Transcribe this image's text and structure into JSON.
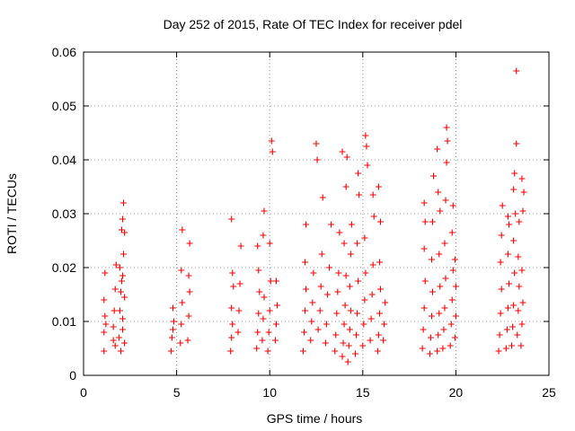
{
  "chart_data": {
    "type": "scatter",
    "title": "Day 252 of 2015, Rate Of TEC Index for receiver pdel",
    "xlabel": "GPS time / hours",
    "ylabel": "ROTI / TECUs",
    "xlim": [
      0,
      25
    ],
    "ylim": [
      0,
      0.06
    ],
    "x_ticks": [
      "0",
      "5",
      "10",
      "15",
      "20",
      "25"
    ],
    "y_ticks": [
      "0",
      "0.01",
      "0.02",
      "0.03",
      "0.04",
      "0.05",
      "0.06"
    ],
    "grid": true,
    "legend": "none",
    "marker": "plus",
    "color": "#ff0000",
    "series": [
      {
        "values": [
          [
            1.1,
            0.0045
          ],
          [
            1.1,
            0.008
          ],
          [
            1.15,
            0.011
          ],
          [
            1.1,
            0.014
          ],
          [
            1.15,
            0.019
          ],
          [
            1.2,
            0.0095
          ],
          [
            1.6,
            0.009
          ],
          [
            1.65,
            0.012
          ],
          [
            1.7,
            0.016
          ],
          [
            1.6,
            0.0065
          ],
          [
            1.75,
            0.0205
          ],
          [
            1.7,
            0.0055
          ],
          [
            1.9,
            0.007
          ],
          [
            1.95,
            0.012
          ],
          [
            2.0,
            0.0155
          ],
          [
            1.95,
            0.02
          ],
          [
            2.05,
            0.027
          ],
          [
            2.1,
            0.029
          ],
          [
            2.0,
            0.0045
          ],
          [
            2.1,
            0.0085
          ],
          [
            2.1,
            0.0185
          ],
          [
            2.15,
            0.0225
          ],
          [
            2.15,
            0.032
          ],
          [
            2.2,
            0.0265
          ],
          [
            2.1,
            0.0105
          ],
          [
            2.2,
            0.0145
          ],
          [
            2.2,
            0.006
          ],
          [
            2.05,
            0.0175
          ],
          [
            4.7,
            0.0045
          ],
          [
            4.75,
            0.007
          ],
          [
            4.8,
            0.0085
          ],
          [
            4.85,
            0.01
          ],
          [
            4.8,
            0.0125
          ],
          [
            5.2,
            0.006
          ],
          [
            5.25,
            0.0095
          ],
          [
            5.3,
            0.0135
          ],
          [
            5.25,
            0.0195
          ],
          [
            5.3,
            0.027
          ],
          [
            5.6,
            0.0065
          ],
          [
            5.65,
            0.011
          ],
          [
            5.7,
            0.0155
          ],
          [
            5.65,
            0.0185
          ],
          [
            5.7,
            0.0245
          ],
          [
            7.9,
            0.0045
          ],
          [
            7.95,
            0.007
          ],
          [
            8.0,
            0.0095
          ],
          [
            7.95,
            0.0125
          ],
          [
            8.05,
            0.0165
          ],
          [
            8.0,
            0.019
          ],
          [
            7.95,
            0.029
          ],
          [
            8.3,
            0.008
          ],
          [
            8.35,
            0.012
          ],
          [
            8.4,
            0.017
          ],
          [
            8.45,
            0.024
          ],
          [
            9.3,
            0.005
          ],
          [
            9.35,
            0.008
          ],
          [
            9.4,
            0.0115
          ],
          [
            9.45,
            0.0155
          ],
          [
            9.4,
            0.0195
          ],
          [
            9.35,
            0.024
          ],
          [
            9.6,
            0.0065
          ],
          [
            9.65,
            0.0105
          ],
          [
            9.7,
            0.0145
          ],
          [
            9.65,
            0.026
          ],
          [
            9.7,
            0.0305
          ],
          [
            9.9,
            0.0045
          ],
          [
            9.95,
            0.008
          ],
          [
            10.0,
            0.012
          ],
          [
            10.05,
            0.0175
          ],
          [
            10.0,
            0.0245
          ],
          [
            10.1,
            0.0435
          ],
          [
            10.15,
            0.0415
          ],
          [
            10.3,
            0.0065
          ],
          [
            10.35,
            0.0095
          ],
          [
            10.4,
            0.013
          ],
          [
            10.35,
            0.0175
          ],
          [
            11.8,
            0.0045
          ],
          [
            11.85,
            0.008
          ],
          [
            11.9,
            0.012
          ],
          [
            11.95,
            0.016
          ],
          [
            11.9,
            0.021
          ],
          [
            11.95,
            0.028
          ],
          [
            12.2,
            0.0065
          ],
          [
            12.25,
            0.01
          ],
          [
            12.3,
            0.0135
          ],
          [
            12.35,
            0.019
          ],
          [
            12.5,
            0.043
          ],
          [
            12.55,
            0.04
          ],
          [
            12.6,
            0.0085
          ],
          [
            12.7,
            0.012
          ],
          [
            12.75,
            0.0165
          ],
          [
            12.8,
            0.0225
          ],
          [
            12.85,
            0.033
          ],
          [
            13.0,
            0.006
          ],
          [
            13.05,
            0.0095
          ],
          [
            13.1,
            0.015
          ],
          [
            13.2,
            0.02
          ],
          [
            13.3,
            0.028
          ],
          [
            13.5,
            0.0045
          ],
          [
            13.55,
            0.0075
          ],
          [
            13.6,
            0.0115
          ],
          [
            13.65,
            0.0155
          ],
          [
            13.7,
            0.019
          ],
          [
            13.75,
            0.0265
          ],
          [
            13.9,
            0.0035
          ],
          [
            13.95,
            0.006
          ],
          [
            14.0,
            0.0095
          ],
          [
            14.05,
            0.013
          ],
          [
            14.1,
            0.0185
          ],
          [
            14.0,
            0.0245
          ],
          [
            14.1,
            0.035
          ],
          [
            14.15,
            0.0405
          ],
          [
            13.9,
            0.0415
          ],
          [
            14.2,
            0.0025
          ],
          [
            14.25,
            0.0055
          ],
          [
            14.3,
            0.0085
          ],
          [
            14.35,
            0.012
          ],
          [
            14.3,
            0.0165
          ],
          [
            14.35,
            0.0225
          ],
          [
            14.4,
            0.028
          ],
          [
            14.6,
            0.004
          ],
          [
            14.65,
            0.0075
          ],
          [
            14.7,
            0.0115
          ],
          [
            14.75,
            0.0175
          ],
          [
            14.7,
            0.0245
          ],
          [
            14.75,
            0.0375
          ],
          [
            14.8,
            0.0335
          ],
          [
            15.0,
            0.0055
          ],
          [
            15.05,
            0.0095
          ],
          [
            15.1,
            0.014
          ],
          [
            15.15,
            0.019
          ],
          [
            15.1,
            0.0255
          ],
          [
            15.15,
            0.0445
          ],
          [
            15.2,
            0.0425
          ],
          [
            15.25,
            0.039
          ],
          [
            15.4,
            0.0065
          ],
          [
            15.45,
            0.0105
          ],
          [
            15.5,
            0.015
          ],
          [
            15.55,
            0.0205
          ],
          [
            15.6,
            0.0295
          ],
          [
            15.55,
            0.0335
          ],
          [
            15.8,
            0.0045
          ],
          [
            15.85,
            0.0075
          ],
          [
            15.9,
            0.0115
          ],
          [
            15.95,
            0.016
          ],
          [
            15.9,
            0.021
          ],
          [
            15.95,
            0.0285
          ],
          [
            15.85,
            0.035
          ],
          [
            16.1,
            0.0065
          ],
          [
            16.15,
            0.0095
          ],
          [
            16.2,
            0.0135
          ],
          [
            18.2,
            0.005
          ],
          [
            18.25,
            0.0085
          ],
          [
            18.3,
            0.0125
          ],
          [
            18.35,
            0.0175
          ],
          [
            18.3,
            0.0235
          ],
          [
            18.35,
            0.0285
          ],
          [
            18.3,
            0.032
          ],
          [
            18.6,
            0.004
          ],
          [
            18.65,
            0.007
          ],
          [
            18.7,
            0.011
          ],
          [
            18.75,
            0.0155
          ],
          [
            18.7,
            0.0215
          ],
          [
            18.75,
            0.0285
          ],
          [
            18.8,
            0.037
          ],
          [
            19.0,
            0.0045
          ],
          [
            19.05,
            0.0075
          ],
          [
            19.1,
            0.0115
          ],
          [
            19.15,
            0.0165
          ],
          [
            19.1,
            0.0225
          ],
          [
            19.15,
            0.0305
          ],
          [
            19.0,
            0.042
          ],
          [
            19.05,
            0.034
          ],
          [
            19.3,
            0.005
          ],
          [
            19.35,
            0.0085
          ],
          [
            19.4,
            0.0125
          ],
          [
            19.45,
            0.018
          ],
          [
            19.4,
            0.0245
          ],
          [
            19.45,
            0.0325
          ],
          [
            19.5,
            0.046
          ],
          [
            19.55,
            0.0435
          ],
          [
            19.5,
            0.0395
          ],
          [
            19.7,
            0.0055
          ],
          [
            19.75,
            0.0095
          ],
          [
            19.8,
            0.014
          ],
          [
            19.85,
            0.0195
          ],
          [
            19.8,
            0.0265
          ],
          [
            19.85,
            0.0315
          ],
          [
            19.95,
            0.007
          ],
          [
            20.0,
            0.011
          ],
          [
            20.0,
            0.0165
          ],
          [
            19.95,
            0.0215
          ],
          [
            22.3,
            0.0045
          ],
          [
            22.35,
            0.0075
          ],
          [
            22.4,
            0.0115
          ],
          [
            22.45,
            0.016
          ],
          [
            22.4,
            0.021
          ],
          [
            22.45,
            0.026
          ],
          [
            22.5,
            0.0315
          ],
          [
            22.7,
            0.005
          ],
          [
            22.75,
            0.0085
          ],
          [
            22.8,
            0.0125
          ],
          [
            22.85,
            0.017
          ],
          [
            22.8,
            0.0225
          ],
          [
            22.85,
            0.028
          ],
          [
            22.8,
            0.0295
          ],
          [
            23.0,
            0.0055
          ],
          [
            23.05,
            0.009
          ],
          [
            23.1,
            0.013
          ],
          [
            23.15,
            0.019
          ],
          [
            23.1,
            0.025
          ],
          [
            23.15,
            0.0375
          ],
          [
            23.1,
            0.0345
          ],
          [
            23.2,
            0.03
          ],
          [
            23.25,
            0.0565
          ],
          [
            23.25,
            0.043
          ],
          [
            23.3,
            0.0075
          ],
          [
            23.35,
            0.012
          ],
          [
            23.4,
            0.0165
          ],
          [
            23.35,
            0.022
          ],
          [
            23.4,
            0.0285
          ],
          [
            23.5,
            0.0055
          ],
          [
            23.55,
            0.0095
          ],
          [
            23.6,
            0.0135
          ],
          [
            23.55,
            0.0195
          ],
          [
            23.6,
            0.0305
          ],
          [
            23.55,
            0.0365
          ],
          [
            23.65,
            0.034
          ]
        ]
      }
    ]
  }
}
